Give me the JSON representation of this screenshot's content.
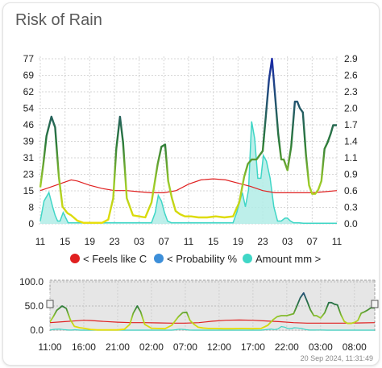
{
  "card": {
    "title": "Risk of Rain"
  },
  "timestamp": "20 Sep 2024, 11:31:49",
  "colors": {
    "feels_like": "#e02020",
    "probability_low": "#f0e000",
    "probability_mid": "#9ccc2a",
    "probability_high": "#2a7a3a",
    "probability_peak": "#1a2aa8",
    "amount_fill": "#b2ece6",
    "amount_line": "#3fd6c6",
    "legend_probability": "#3d8fd9",
    "navigator_mask": "#e6e6e6"
  },
  "chart_data": [
    {
      "type": "line",
      "title": "",
      "x_tick_labels": [
        "11",
        "15",
        "19",
        "23",
        "03",
        "07",
        "11",
        "15",
        "19",
        "23",
        "03",
        "07",
        "11"
      ],
      "y_left_ticks": [
        "77",
        "69",
        "62",
        "54",
        "46",
        "39",
        "31",
        "23",
        "15",
        "8",
        "0"
      ],
      "y_right_ticks": [
        "2.9",
        "2.6",
        "2.3",
        "2.0",
        "1.7",
        "1.4",
        "1.1",
        "0.9",
        "0.6",
        "0.3",
        "0.0"
      ],
      "ylim_left": [
        0,
        77
      ],
      "ylim_right": [
        0,
        2.9
      ],
      "x_hours_range": [
        11,
        59
      ],
      "grid": true,
      "legend_position": "bottom",
      "series": [
        {
          "name": "< Feels like C",
          "axis": "left",
          "x": [
            11,
            13,
            15,
            16,
            17,
            19,
            21,
            23,
            25,
            27,
            29,
            31,
            33,
            35,
            37,
            39,
            41,
            43,
            45,
            47,
            49,
            51,
            53,
            55,
            57,
            59
          ],
          "values": [
            15.5,
            17.5,
            19.5,
            20.5,
            20,
            18,
            16.5,
            15.5,
            15.5,
            15,
            14.5,
            14.5,
            15.5,
            18.5,
            20.5,
            21,
            20.5,
            19,
            17.5,
            15.5,
            14.5,
            14.5,
            14.5,
            14.5,
            15,
            15.5
          ]
        },
        {
          "name": "< Probability %",
          "axis": "left",
          "x": [
            11,
            11.5,
            12,
            12.8,
            13.4,
            14,
            14.6,
            15.4,
            16,
            17,
            18,
            19,
            20,
            21,
            22,
            22.8,
            23.3,
            23.9,
            24.4,
            25,
            26,
            27,
            28,
            29,
            30,
            30.6,
            31.2,
            31.7,
            32.3,
            32.9,
            33.6,
            34.4,
            35.4,
            36.6,
            38,
            39.4,
            40.8,
            42.2,
            43.2,
            44,
            44.6,
            45.2,
            46,
            47,
            47.5,
            48,
            48.5,
            49,
            49.5,
            50,
            50.4,
            51,
            51.6,
            52.2,
            52.6,
            53,
            53.5,
            54,
            54.5,
            55,
            55.5,
            56,
            56.5,
            57,
            57.5,
            58,
            58.4,
            59
          ],
          "values": [
            17,
            28,
            41,
            50,
            45,
            22,
            8,
            5,
            4,
            1.5,
            0.5,
            0.5,
            0.5,
            0.5,
            2,
            12,
            35,
            50,
            38,
            12,
            4,
            3.5,
            3,
            10,
            28,
            36,
            37,
            20,
            12,
            6,
            4.5,
            3.5,
            3.5,
            3,
            3,
            3.5,
            3,
            3.5,
            10,
            22,
            28,
            30,
            30,
            34,
            50,
            67,
            77,
            60,
            42,
            30,
            30,
            25,
            36,
            57,
            57,
            54,
            52,
            32,
            18,
            14,
            14,
            16,
            20,
            35,
            38,
            42,
            46,
            46
          ]
        },
        {
          "name": "Amount mm >",
          "axis": "right",
          "x": [
            11,
            11.6,
            12.4,
            13,
            13.4,
            13.8,
            14.2,
            14.7,
            15.5,
            29,
            29.6,
            30.1,
            30.6,
            31.1,
            31.6,
            32.2,
            42.2,
            42.8,
            43.3,
            43.7,
            44.2,
            44.7,
            45.2,
            45.7,
            46.2,
            46.7,
            47.1,
            47.6,
            48.2,
            48.8,
            49.4,
            50,
            50.6,
            51,
            51.5,
            52,
            52.8,
            53.6,
            59
          ],
          "values": [
            0.05,
            0.4,
            0.55,
            0.3,
            0.15,
            0.05,
            0.05,
            0.2,
            0.02,
            0.02,
            0.2,
            0.5,
            0.4,
            0.2,
            0.05,
            0.02,
            0.02,
            0.2,
            0.4,
            0.55,
            0.3,
            0.6,
            1.8,
            1.5,
            0.8,
            0.8,
            1.2,
            1.1,
            0.8,
            0.3,
            0.05,
            0.05,
            0.1,
            0.1,
            0.05,
            0.02,
            0.02,
            0.01,
            0.01
          ]
        }
      ]
    },
    {
      "type": "line",
      "title": "",
      "x_tick_labels": [
        "11:00",
        "16:00",
        "21:00",
        "02:00",
        "07:00",
        "12:00",
        "17:00",
        "22:00",
        "03:00",
        "08:00"
      ],
      "x_tick_hours": [
        11,
        16,
        21,
        26,
        31,
        36,
        41,
        46,
        51,
        56
      ],
      "y_ticks": [
        "100.0",
        "50.0",
        "0.0"
      ],
      "ylim": [
        0,
        100
      ],
      "x_hours_range": [
        11,
        59
      ],
      "selection": "entire range"
    }
  ]
}
